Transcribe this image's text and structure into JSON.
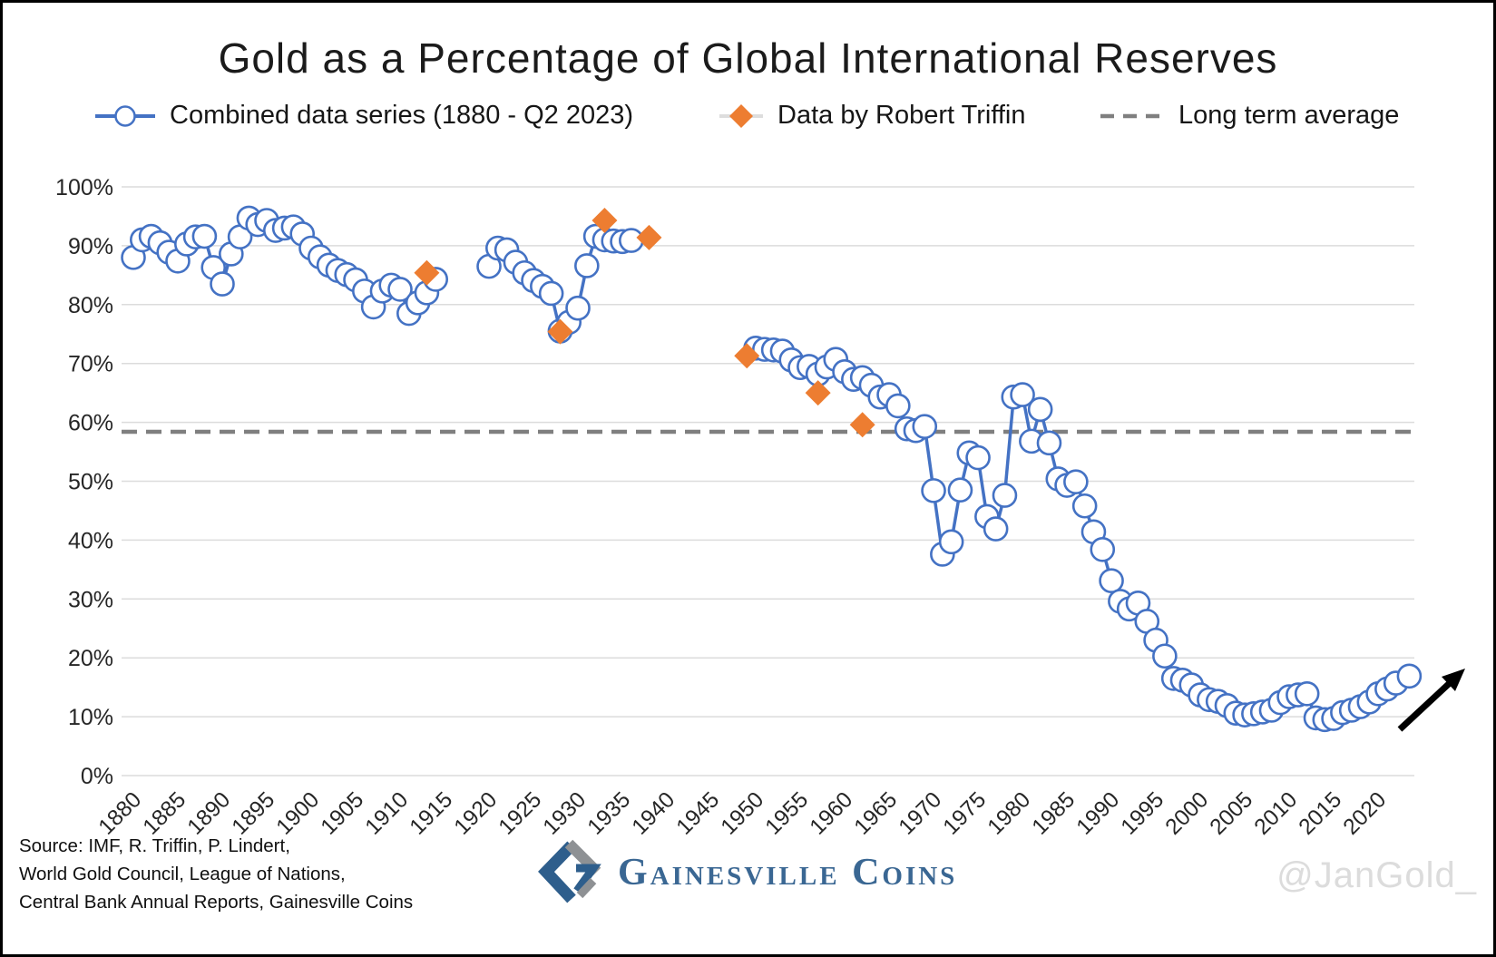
{
  "title": "Gold as a Percentage of Global International Reserves",
  "legend": {
    "combined": {
      "label": "Combined data series (1880 - Q2 2023)",
      "marker": "line-with-circle",
      "color": "#4472C4"
    },
    "triffin": {
      "label": "Data by Robert Triffin",
      "marker": "diamond",
      "color": "#ED7D31"
    },
    "average": {
      "label": "Long term average",
      "marker": "dashed-line",
      "color": "#7F7F7F"
    }
  },
  "footer": {
    "source_line1": "Source: IMF, R. Triffin, P. Lindert,",
    "source_line2": "World Gold Council, League of Nations,",
    "source_line3": "Central Bank Annual Reports, Gainesville Coins",
    "logo_text": "Gainesville Coins",
    "handle": "@JanGold_"
  },
  "chart_data": {
    "type": "line",
    "title": "Gold as a Percentage of Global International Reserves",
    "xlabel": "",
    "ylabel": "",
    "ylim": [
      0,
      100
    ],
    "grid": true,
    "legend_position": "top",
    "y_ticks": [
      "0%",
      "10%",
      "20%",
      "30%",
      "40%",
      "50%",
      "60%",
      "70%",
      "80%",
      "90%",
      "100%"
    ],
    "x_ticks": [
      1880,
      1885,
      1890,
      1895,
      1900,
      1905,
      1910,
      1915,
      1920,
      1925,
      1930,
      1935,
      1940,
      1945,
      1950,
      1955,
      1960,
      1965,
      1970,
      1975,
      1980,
      1985,
      1990,
      1995,
      2000,
      2005,
      2010,
      2015,
      2020
    ],
    "long_term_average": 58.4,
    "colors": {
      "line": "#4472C4",
      "diamond": "#ED7D31",
      "dashed": "#7F7F7F",
      "grid": "#DCDCDC",
      "arrow": "#000000"
    },
    "series": [
      {
        "name": "Combined data series (1880 - Q2 2023)",
        "marker": "circle",
        "color": "#4472C4",
        "segments": [
          [
            [
              1880,
              88.0
            ],
            [
              1881,
              91.0
            ],
            [
              1882,
              91.6
            ],
            [
              1883,
              90.5
            ],
            [
              1884,
              88.9
            ],
            [
              1885,
              87.4
            ],
            [
              1886,
              90.3
            ],
            [
              1887,
              91.5
            ],
            [
              1888,
              91.6
            ],
            [
              1889,
              86.3
            ],
            [
              1890,
              83.5
            ],
            [
              1891,
              88.6
            ],
            [
              1892,
              91.5
            ],
            [
              1893,
              94.7
            ],
            [
              1894,
              93.6
            ],
            [
              1895,
              94.3
            ],
            [
              1896,
              92.6
            ],
            [
              1897,
              93.0
            ],
            [
              1898,
              93.2
            ],
            [
              1899,
              92.0
            ],
            [
              1900,
              89.6
            ],
            [
              1901,
              88.1
            ],
            [
              1902,
              86.7
            ],
            [
              1903,
              85.8
            ],
            [
              1904,
              85.1
            ],
            [
              1905,
              84.2
            ],
            [
              1906,
              82.3
            ],
            [
              1907,
              79.6
            ],
            [
              1908,
              82.3
            ],
            [
              1909,
              83.3
            ],
            [
              1910,
              82.6
            ],
            [
              1911,
              78.5
            ],
            [
              1912,
              80.3
            ],
            [
              1913,
              82.0
            ],
            [
              1914,
              84.3
            ]
          ],
          [
            [
              1920,
              86.5
            ],
            [
              1921,
              89.6
            ],
            [
              1922,
              89.3
            ],
            [
              1923,
              87.2
            ],
            [
              1924,
              85.4
            ],
            [
              1925,
              84.1
            ],
            [
              1926,
              83.1
            ],
            [
              1927,
              81.9
            ],
            [
              1928,
              75.5
            ],
            [
              1929,
              77.0
            ],
            [
              1930,
              79.4
            ],
            [
              1931,
              86.6
            ],
            [
              1932,
              91.6
            ],
            [
              1933,
              91.0
            ],
            [
              1934,
              90.8
            ],
            [
              1935,
              90.7
            ],
            [
              1936,
              90.9
            ]
          ],
          [
            [
              1950,
              72.6
            ],
            [
              1951,
              72.4
            ],
            [
              1952,
              72.3
            ],
            [
              1953,
              72.1
            ],
            [
              1954,
              70.6
            ],
            [
              1955,
              69.3
            ],
            [
              1956,
              69.5
            ],
            [
              1957,
              68.2
            ],
            [
              1958,
              69.4
            ],
            [
              1959,
              70.7
            ],
            [
              1960,
              68.6
            ],
            [
              1961,
              67.3
            ],
            [
              1962,
              67.6
            ],
            [
              1963,
              66.3
            ],
            [
              1964,
              64.3
            ],
            [
              1965,
              64.7
            ],
            [
              1966,
              62.8
            ],
            [
              1967,
              58.9
            ],
            [
              1968,
              58.6
            ],
            [
              1969,
              59.3
            ],
            [
              1970,
              48.4
            ],
            [
              1971,
              37.6
            ],
            [
              1972,
              39.7
            ],
            [
              1973,
              48.5
            ],
            [
              1974,
              54.8
            ],
            [
              1975,
              54.0
            ],
            [
              1976,
              44.0
            ],
            [
              1977,
              41.9
            ],
            [
              1978,
              47.6
            ],
            [
              1979,
              64.3
            ],
            [
              1980,
              64.7
            ],
            [
              1981,
              56.8
            ],
            [
              1982,
              62.2
            ],
            [
              1983,
              56.5
            ],
            [
              1984,
              50.4
            ],
            [
              1985,
              49.3
            ],
            [
              1986,
              49.9
            ],
            [
              1987,
              45.8
            ],
            [
              1988,
              41.4
            ],
            [
              1989,
              38.4
            ],
            [
              1990,
              33.1
            ],
            [
              1991,
              29.6
            ],
            [
              1992,
              28.3
            ],
            [
              1993,
              29.3
            ],
            [
              1994,
              26.2
            ],
            [
              1995,
              23.0
            ],
            [
              1996,
              20.3
            ],
            [
              1997,
              16.5
            ],
            [
              1998,
              16.2
            ],
            [
              1999,
              15.4
            ],
            [
              2000,
              13.7
            ],
            [
              2001,
              12.9
            ],
            [
              2002,
              12.6
            ],
            [
              2003,
              11.9
            ],
            [
              2004,
              10.6
            ],
            [
              2005,
              10.3
            ],
            [
              2006,
              10.5
            ],
            [
              2007,
              10.8
            ],
            [
              2008,
              11.1
            ],
            [
              2009,
              12.4
            ],
            [
              2010,
              13.4
            ],
            [
              2011,
              13.7
            ],
            [
              2012,
              13.9
            ],
            [
              2013,
              9.8
            ],
            [
              2014,
              9.5
            ],
            [
              2015,
              9.7
            ],
            [
              2016,
              10.7
            ],
            [
              2017,
              11.1
            ],
            [
              2018,
              11.7
            ],
            [
              2019,
              12.5
            ],
            [
              2020,
              13.9
            ],
            [
              2021,
              14.7
            ],
            [
              2022,
              15.7
            ],
            [
              2023.5,
              16.9
            ]
          ]
        ]
      },
      {
        "name": "Data by Robert Triffin",
        "marker": "diamond",
        "color": "#ED7D31",
        "points": [
          [
            1913,
            85.4
          ],
          [
            1928,
            75.4
          ],
          [
            1933,
            94.3
          ],
          [
            1938,
            91.4
          ],
          [
            1949,
            71.3
          ],
          [
            1957,
            65.0
          ],
          [
            1962,
            59.6
          ]
        ]
      }
    ],
    "annotations": [
      {
        "type": "arrow",
        "direction": "up-right",
        "position": "bottom-right"
      }
    ]
  }
}
